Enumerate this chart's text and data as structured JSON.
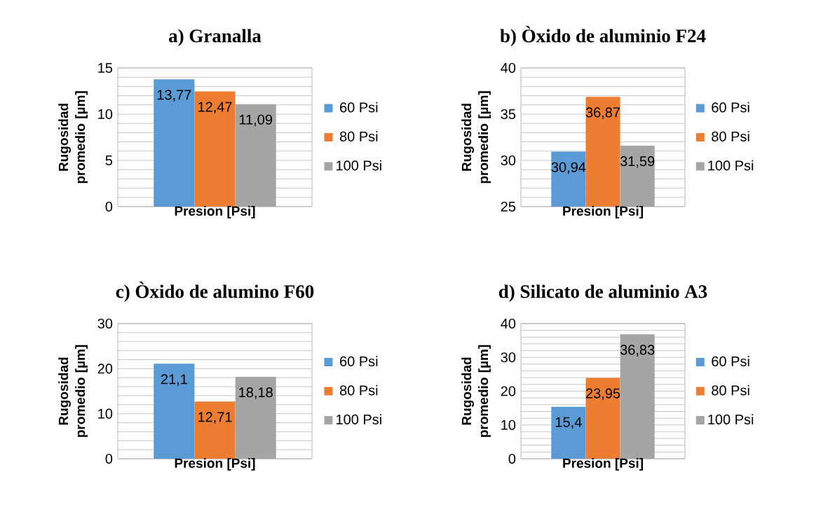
{
  "chart_data": [
    {
      "type": "bar",
      "title": "a) Granalla",
      "xlabel": "Presion [Psi]",
      "ylabel": "Rugosidad promedio [µm]",
      "categories": [
        null
      ],
      "ylim": [
        0,
        15
      ],
      "yticks": [
        0,
        5,
        10,
        15
      ],
      "grid": "y",
      "legend": "right",
      "series": [
        {
          "name": "60 Psi",
          "color": "#5b9bd5",
          "values": [
            13.77
          ],
          "value_labels": [
            "13,77"
          ]
        },
        {
          "name": "80 Psi",
          "color": "#ed7d31",
          "values": [
            12.47
          ],
          "value_labels": [
            "12,47"
          ]
        },
        {
          "name": "100 Psi",
          "color": "#a5a5a5",
          "values": [
            11.09
          ],
          "value_labels": [
            "11,09"
          ]
        }
      ]
    },
    {
      "type": "bar",
      "title": "b) Òxido de aluminio F24",
      "xlabel": "Presion [Psi]",
      "ylabel": "Rugosidad promedio [µm]",
      "categories": [
        null
      ],
      "ylim": [
        25,
        40
      ],
      "yticks": [
        25,
        30,
        35,
        40
      ],
      "grid": "y",
      "legend": "right",
      "series": [
        {
          "name": "60 Psi",
          "color": "#5b9bd5",
          "values": [
            30.94
          ],
          "value_labels": [
            "30,94"
          ]
        },
        {
          "name": "80 Psi",
          "color": "#ed7d31",
          "values": [
            36.87
          ],
          "value_labels": [
            "36,87"
          ]
        },
        {
          "name": "100 Psi",
          "color": "#a5a5a5",
          "values": [
            31.59
          ],
          "value_labels": [
            "31,59"
          ]
        }
      ]
    },
    {
      "type": "bar",
      "title": "c) Òxido de alumino F60",
      "xlabel": "Presion [Psi]",
      "ylabel": "Rugosidad promedio [µm]",
      "categories": [
        null
      ],
      "ylim": [
        0,
        30
      ],
      "yticks": [
        0,
        10,
        20,
        30
      ],
      "grid": "y",
      "legend": "right",
      "series": [
        {
          "name": "60 Psi",
          "color": "#5b9bd5",
          "values": [
            21.1
          ],
          "value_labels": [
            "21,1"
          ]
        },
        {
          "name": "80 Psi",
          "color": "#ed7d31",
          "values": [
            12.71
          ],
          "value_labels": [
            "12,71"
          ]
        },
        {
          "name": "100 Psi",
          "color": "#a5a5a5",
          "values": [
            18.18
          ],
          "value_labels": [
            "18,18"
          ]
        }
      ]
    },
    {
      "type": "bar",
      "title": "d) Silicato de aluminio A3",
      "xlabel": "Presion [Psi]",
      "ylabel": "Rugosidad promedio [µm]",
      "categories": [
        null
      ],
      "ylim": [
        0,
        40
      ],
      "yticks": [
        0,
        10,
        20,
        30,
        40
      ],
      "grid": "y",
      "legend": "right",
      "series": [
        {
          "name": "60 Psi",
          "color": "#5b9bd5",
          "values": [
            15.4
          ],
          "value_labels": [
            "15,4"
          ]
        },
        {
          "name": "80 Psi",
          "color": "#ed7d31",
          "values": [
            23.95
          ],
          "value_labels": [
            "23,95"
          ]
        },
        {
          "name": "100 Psi",
          "color": "#a5a5a5",
          "values": [
            36.83
          ],
          "value_labels": [
            "36,83"
          ]
        }
      ]
    }
  ]
}
